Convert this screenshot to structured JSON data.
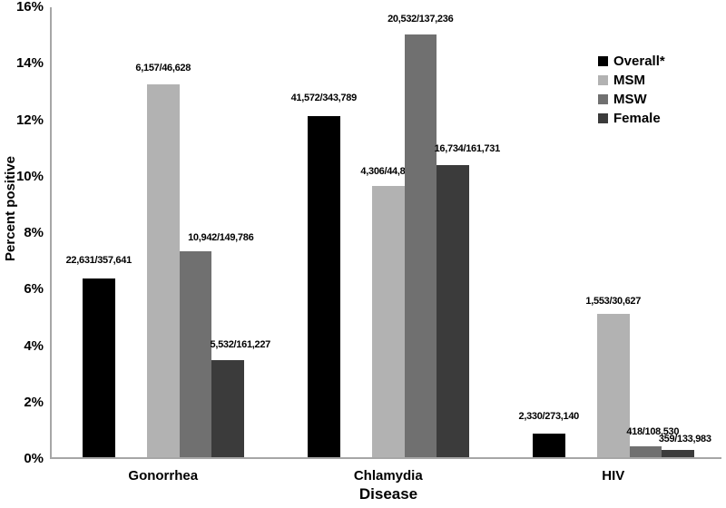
{
  "chart_data": {
    "type": "bar",
    "title": "",
    "xlabel": "Disease",
    "ylabel": "Percent positive",
    "ylim": [
      0,
      16
    ],
    "ytick_labels": [
      "0%",
      "2%",
      "4%",
      "6%",
      "8%",
      "10%",
      "12%",
      "14%",
      "16%"
    ],
    "grid": false,
    "legend_position": "top-right",
    "categories": [
      "Gonorrhea",
      "Chlamydia",
      "HIV"
    ],
    "series": [
      {
        "name": "Overall*",
        "key": "overall",
        "color": "#000000",
        "values": [
          6.33,
          12.09,
          0.85
        ],
        "labels": [
          "22,631/357,641",
          "41,572/343,789",
          "2,330/273,140"
        ]
      },
      {
        "name": "MSM",
        "key": "msm",
        "color": "#b2b2b2",
        "values": [
          13.2,
          9.61,
          5.07
        ],
        "labels": [
          "6,157/46,628",
          "4,306/44,822",
          "1,553/30,627"
        ]
      },
      {
        "name": "MSW",
        "key": "msw",
        "color": "#707070",
        "values": [
          7.3,
          14.96,
          0.39
        ],
        "labels": [
          "10,942/149,786",
          "20,532/137,236",
          "418/108,530"
        ]
      },
      {
        "name": "Female",
        "key": "female",
        "color": "#3b3b3b",
        "values": [
          3.43,
          10.35,
          0.27
        ],
        "labels": [
          "5,532/161,227",
          "16,734/161,731",
          "359/133,983"
        ]
      }
    ],
    "label_layout": {
      "dx": [
        [
          0,
          0,
          0
        ],
        [
          0,
          0,
          0
        ],
        [
          28,
          0,
          8
        ],
        [
          14,
          16,
          8
        ]
      ],
      "gap": [
        [
          14,
          14,
          13
        ],
        [
          12,
          10,
          8
        ],
        [
          9,
          11,
          10
        ],
        [
          11,
          12,
          6
        ]
      ]
    }
  }
}
